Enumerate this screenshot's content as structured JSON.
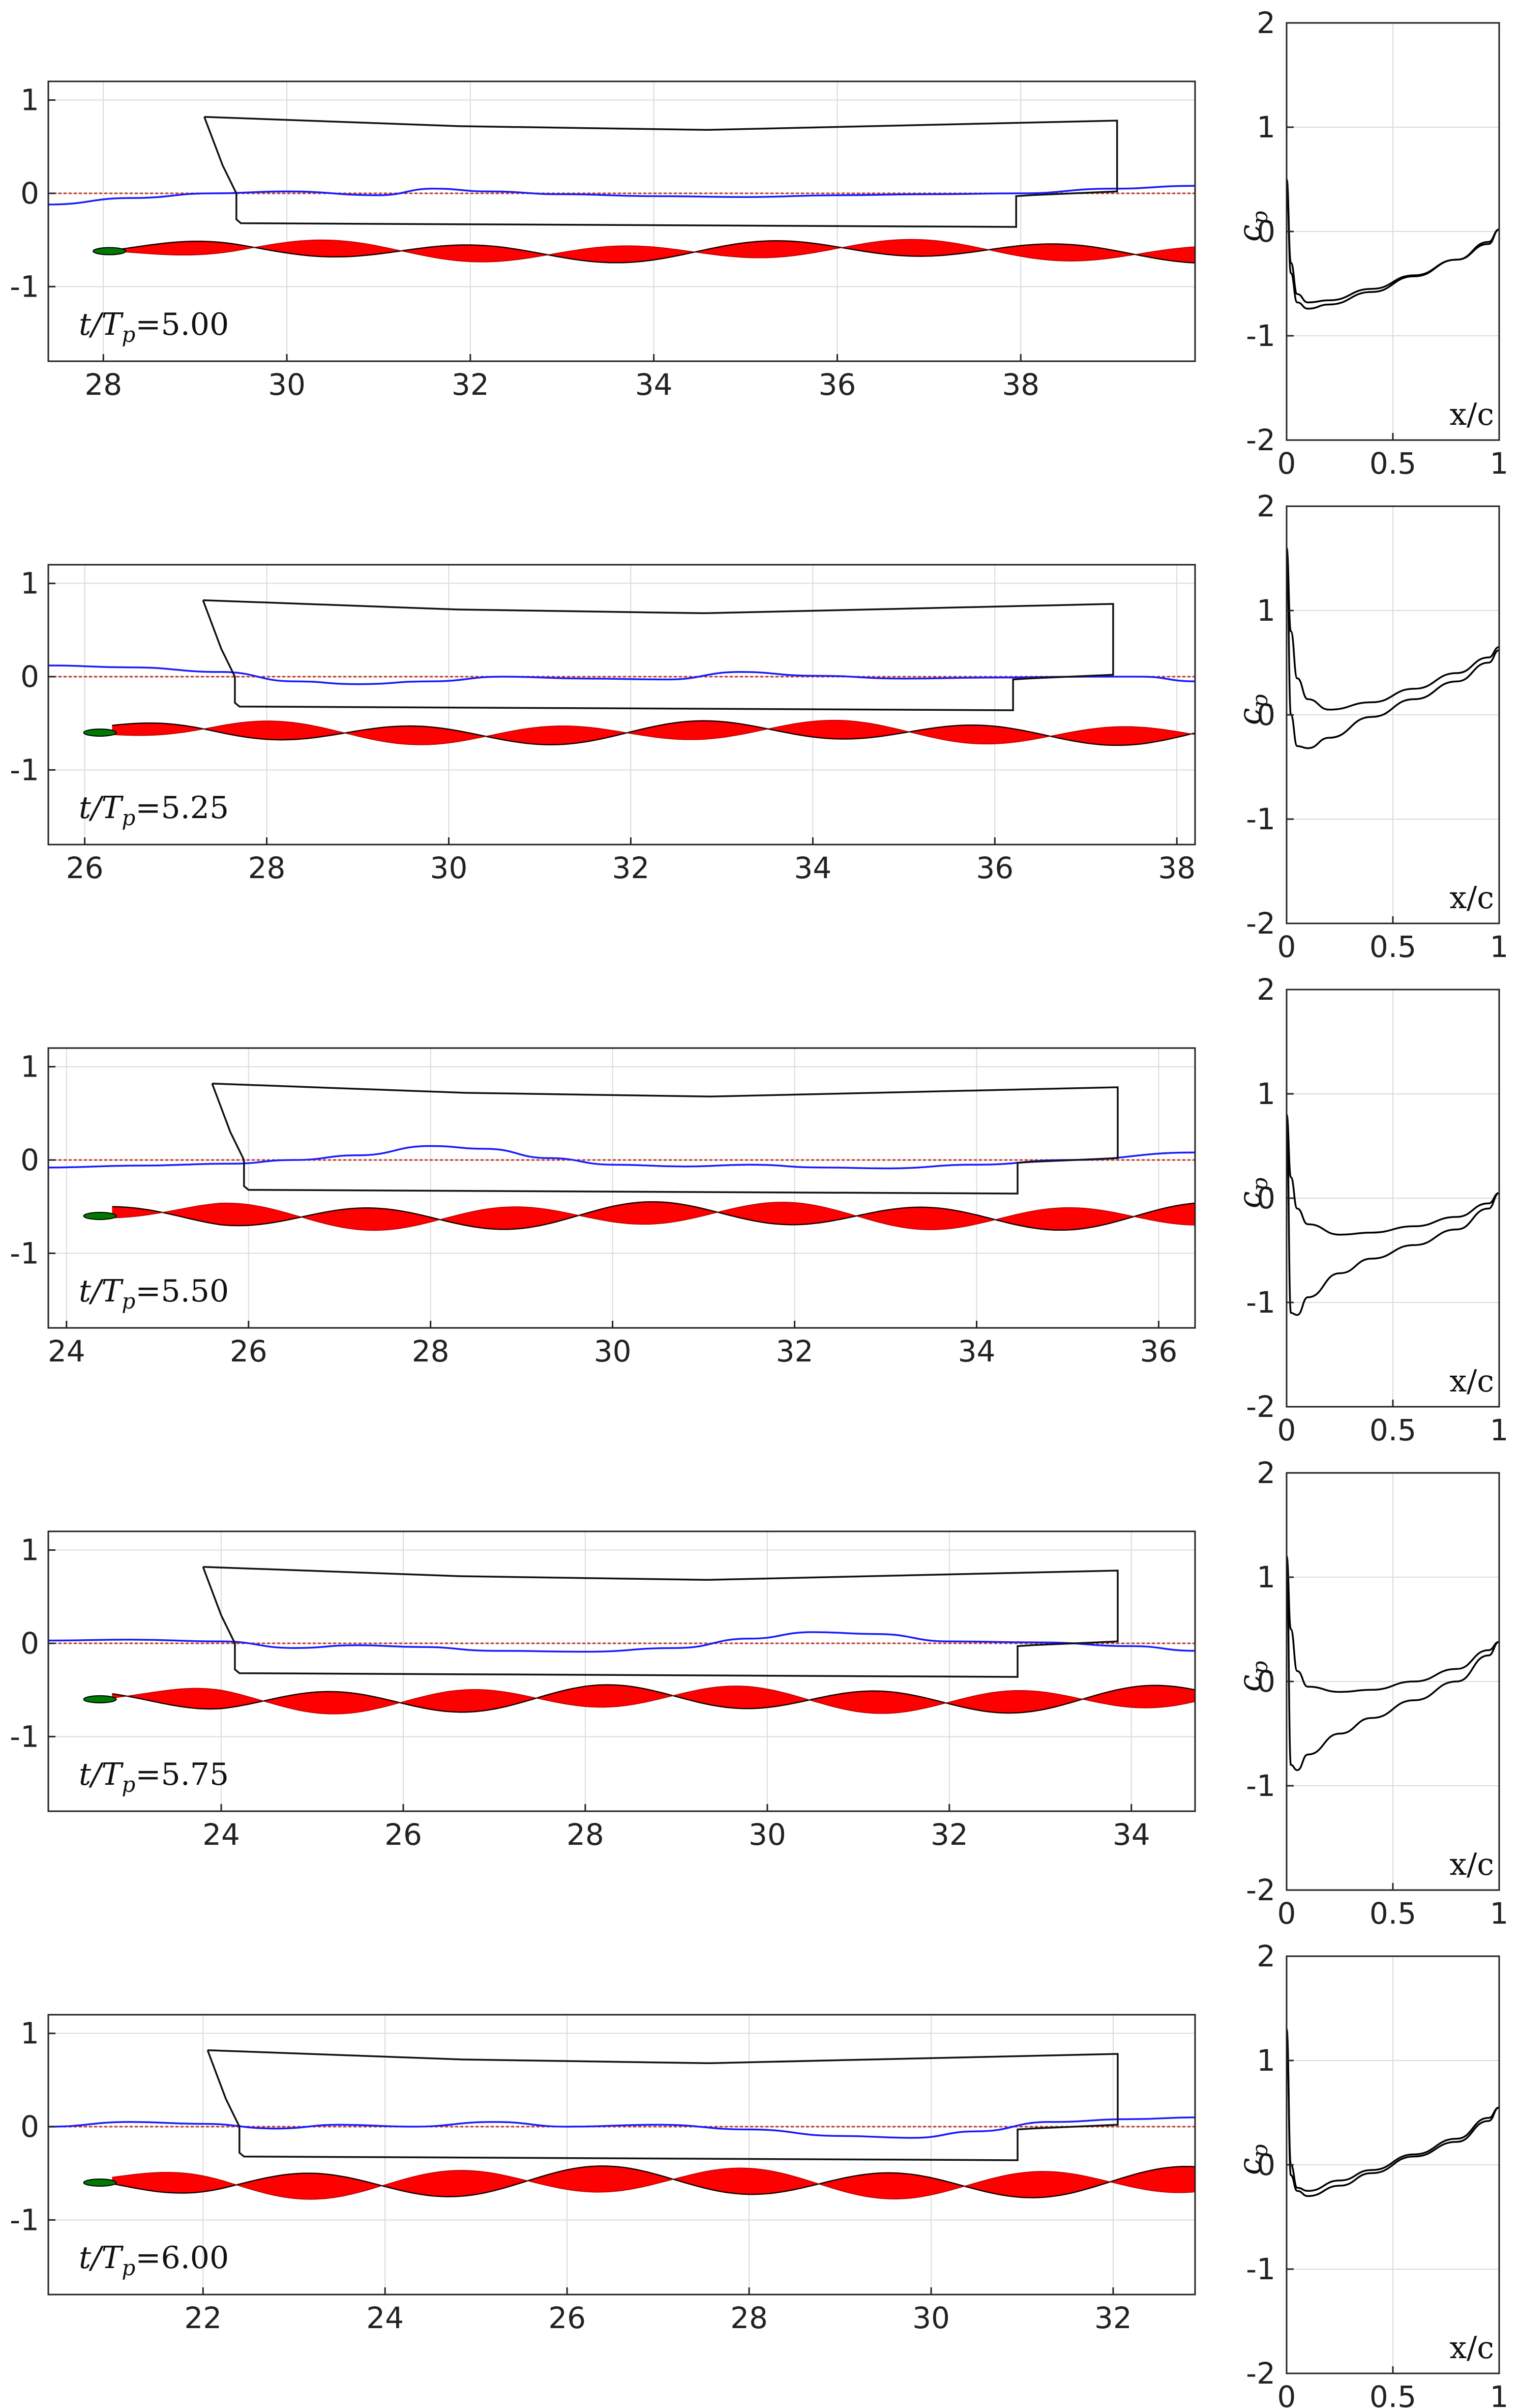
{
  "figure": {
    "description_free": true,
    "colors": {
      "axes": "#222222",
      "grid": "#dcdcdc",
      "hull": "#111111",
      "free_surface": "#1a1aff",
      "still_water": "#c0392b",
      "wake_fill": "#ff0000",
      "wake_edge": "#1a0000",
      "foil": "#007a00",
      "cp_line": "#000000"
    }
  },
  "chart_data": [
    {
      "id": "snapshot-1",
      "type": "line",
      "time_label": {
        "lhs": "t/T",
        "sub": "p",
        "rhs": "=5.00"
      },
      "xlim": [
        27.4,
        39.9
      ],
      "ylim": [
        -1.8,
        1.2
      ],
      "xticks": [
        28,
        30,
        32,
        34,
        36,
        38
      ],
      "yticks": [
        1,
        0,
        -1
      ],
      "hull": {
        "bow_x": 29.1,
        "stern_x": 39.05
      },
      "free_surface": [
        [
          27.4,
          -0.12
        ],
        [
          28.3,
          -0.05
        ],
        [
          29.2,
          0.0
        ],
        [
          30.0,
          0.02
        ],
        [
          31.0,
          -0.02
        ],
        [
          31.6,
          0.05
        ],
        [
          32.2,
          0.02
        ],
        [
          33.0,
          -0.01
        ],
        [
          34.0,
          -0.03
        ],
        [
          35.0,
          -0.04
        ],
        [
          36.0,
          -0.02
        ],
        [
          37.0,
          -0.01
        ],
        [
          38.0,
          0.0
        ],
        [
          39.0,
          0.05
        ],
        [
          39.9,
          0.08
        ]
      ],
      "wake": {
        "x0": 28.2,
        "x1": 39.9,
        "center": -0.62,
        "amp": 0.09,
        "wavelength": 3.2,
        "phase": 0.3
      },
      "foil_x": 27.9,
      "cp": {
        "upper": [
          [
            0.0,
            0.5
          ],
          [
            0.02,
            -0.3
          ],
          [
            0.05,
            -0.6
          ],
          [
            0.1,
            -0.68
          ],
          [
            0.2,
            -0.66
          ],
          [
            0.4,
            -0.55
          ],
          [
            0.6,
            -0.42
          ],
          [
            0.8,
            -0.27
          ],
          [
            0.95,
            -0.1
          ],
          [
            1.0,
            0.02
          ]
        ],
        "lower": [
          [
            0.0,
            0.5
          ],
          [
            0.02,
            -0.4
          ],
          [
            0.05,
            -0.68
          ],
          [
            0.1,
            -0.74
          ],
          [
            0.2,
            -0.7
          ],
          [
            0.4,
            -0.58
          ],
          [
            0.6,
            -0.43
          ],
          [
            0.8,
            -0.27
          ],
          [
            0.95,
            -0.12
          ],
          [
            1.0,
            0.02
          ]
        ]
      },
      "cp_xlabel": "x/c",
      "cp_ylabel": "c",
      "cp_ylabel_sub": "p",
      "cp_xticks": [
        "0",
        "0.5",
        "1"
      ],
      "cp_yticks": [
        "2",
        "1",
        "0",
        "-1",
        "-2"
      ]
    },
    {
      "id": "snapshot-2",
      "type": "line",
      "time_label": {
        "lhs": "t/T",
        "sub": "p",
        "rhs": "=5.25"
      },
      "xlim": [
        25.6,
        38.2
      ],
      "ylim": [
        -1.8,
        1.2
      ],
      "xticks": [
        26,
        28,
        30,
        32,
        34,
        36,
        38
      ],
      "yticks": [
        1,
        0,
        -1
      ],
      "hull": {
        "bow_x": 27.3,
        "stern_x": 37.3
      },
      "free_surface": [
        [
          25.6,
          0.12
        ],
        [
          26.5,
          0.1
        ],
        [
          27.5,
          0.05
        ],
        [
          28.3,
          -0.05
        ],
        [
          29.0,
          -0.08
        ],
        [
          29.8,
          -0.05
        ],
        [
          30.6,
          0.0
        ],
        [
          31.5,
          -0.02
        ],
        [
          32.4,
          -0.03
        ],
        [
          33.2,
          0.05
        ],
        [
          34.0,
          0.01
        ],
        [
          35.0,
          -0.02
        ],
        [
          36.0,
          -0.01
        ],
        [
          37.0,
          0.0
        ],
        [
          37.6,
          0.0
        ],
        [
          38.2,
          -0.05
        ]
      ],
      "wake": {
        "x0": 26.3,
        "x1": 38.2,
        "center": -0.6,
        "amp": 0.1,
        "wavelength": 3.1,
        "phase": 1.1
      },
      "foil_x": 26.0,
      "cp": {
        "upper": [
          [
            0.0,
            1.6
          ],
          [
            0.02,
            0.8
          ],
          [
            0.05,
            0.35
          ],
          [
            0.1,
            0.15
          ],
          [
            0.2,
            0.05
          ],
          [
            0.4,
            0.12
          ],
          [
            0.6,
            0.25
          ],
          [
            0.8,
            0.4
          ],
          [
            0.95,
            0.55
          ],
          [
            1.0,
            0.65
          ]
        ],
        "lower": [
          [
            0.0,
            1.6
          ],
          [
            0.02,
            0.0
          ],
          [
            0.05,
            -0.3
          ],
          [
            0.1,
            -0.32
          ],
          [
            0.2,
            -0.22
          ],
          [
            0.4,
            -0.02
          ],
          [
            0.6,
            0.15
          ],
          [
            0.8,
            0.32
          ],
          [
            0.95,
            0.5
          ],
          [
            1.0,
            0.62
          ]
        ]
      },
      "cp_xlabel": "x/c",
      "cp_ylabel": "c",
      "cp_ylabel_sub": "p",
      "cp_xticks": [
        "0",
        "0.5",
        "1"
      ],
      "cp_yticks": [
        "2",
        "1",
        "0",
        "-1",
        "-2"
      ]
    },
    {
      "id": "snapshot-3",
      "type": "line",
      "time_label": {
        "lhs": "t/T",
        "sub": "p",
        "rhs": "=5.50"
      },
      "xlim": [
        23.8,
        36.4
      ],
      "ylim": [
        -1.8,
        1.2
      ],
      "xticks": [
        24,
        26,
        28,
        30,
        32,
        34,
        36
      ],
      "yticks": [
        1,
        0,
        -1
      ],
      "hull": {
        "bow_x": 25.6,
        "stern_x": 35.55
      },
      "free_surface": [
        [
          23.8,
          -0.08
        ],
        [
          24.8,
          -0.06
        ],
        [
          25.8,
          -0.04
        ],
        [
          26.5,
          0.0
        ],
        [
          27.2,
          0.05
        ],
        [
          28.0,
          0.15
        ],
        [
          28.6,
          0.12
        ],
        [
          29.3,
          0.02
        ],
        [
          30.0,
          -0.05
        ],
        [
          30.8,
          -0.07
        ],
        [
          31.5,
          -0.05
        ],
        [
          32.3,
          -0.08
        ],
        [
          33.0,
          -0.09
        ],
        [
          34.0,
          -0.05
        ],
        [
          35.0,
          0.0
        ],
        [
          36.4,
          0.08
        ]
      ],
      "wake": {
        "x0": 24.5,
        "x1": 36.4,
        "center": -0.6,
        "amp": 0.12,
        "wavelength": 3.05,
        "phase": 2.0
      },
      "foil_x": 24.2,
      "cp": {
        "upper": [
          [
            0.0,
            0.8
          ],
          [
            0.02,
            0.2
          ],
          [
            0.05,
            -0.1
          ],
          [
            0.1,
            -0.25
          ],
          [
            0.25,
            -0.35
          ],
          [
            0.4,
            -0.33
          ],
          [
            0.6,
            -0.27
          ],
          [
            0.8,
            -0.18
          ],
          [
            0.95,
            -0.05
          ],
          [
            1.0,
            0.05
          ]
        ],
        "lower": [
          [
            0.0,
            0.8
          ],
          [
            0.02,
            -1.1
          ],
          [
            0.05,
            -1.12
          ],
          [
            0.1,
            -0.95
          ],
          [
            0.25,
            -0.72
          ],
          [
            0.4,
            -0.58
          ],
          [
            0.6,
            -0.45
          ],
          [
            0.8,
            -0.3
          ],
          [
            0.95,
            -0.1
          ],
          [
            1.0,
            0.05
          ]
        ]
      },
      "cp_xlabel": "x/c",
      "cp_ylabel": "c",
      "cp_ylabel_sub": "p",
      "cp_xticks": [
        "0",
        "0.5",
        "1"
      ],
      "cp_yticks": [
        "2",
        "1",
        "0",
        "-1",
        "-2"
      ]
    },
    {
      "id": "snapshot-4",
      "type": "line",
      "time_label": {
        "lhs": "t/T",
        "sub": "p",
        "rhs": "=5.75"
      },
      "xlim": [
        22.1,
        34.7
      ],
      "ylim": [
        -1.8,
        1.2
      ],
      "xticks": [
        24,
        26,
        28,
        30,
        32,
        34
      ],
      "yticks": [
        1,
        0,
        -1
      ],
      "hull": {
        "bow_x": 23.8,
        "stern_x": 33.85
      },
      "free_surface": [
        [
          22.1,
          0.03
        ],
        [
          23.0,
          0.04
        ],
        [
          24.0,
          0.02
        ],
        [
          24.8,
          -0.05
        ],
        [
          25.5,
          -0.02
        ],
        [
          26.2,
          -0.04
        ],
        [
          27.0,
          -0.08
        ],
        [
          28.0,
          -0.09
        ],
        [
          29.0,
          -0.05
        ],
        [
          29.8,
          0.05
        ],
        [
          30.5,
          0.12
        ],
        [
          31.2,
          0.1
        ],
        [
          32.0,
          0.02
        ],
        [
          33.0,
          0.01
        ],
        [
          34.0,
          -0.03
        ],
        [
          34.7,
          -0.08
        ]
      ],
      "wake": {
        "x0": 22.8,
        "x1": 34.7,
        "center": -0.6,
        "amp": 0.12,
        "wavelength": 3.0,
        "phase": 2.8
      },
      "foil_x": 22.5,
      "cp": {
        "upper": [
          [
            0.0,
            1.2
          ],
          [
            0.02,
            0.5
          ],
          [
            0.05,
            0.1
          ],
          [
            0.1,
            -0.05
          ],
          [
            0.25,
            -0.1
          ],
          [
            0.4,
            -0.08
          ],
          [
            0.6,
            0.0
          ],
          [
            0.8,
            0.12
          ],
          [
            0.95,
            0.3
          ],
          [
            1.0,
            0.38
          ]
        ],
        "lower": [
          [
            0.0,
            1.2
          ],
          [
            0.02,
            -0.8
          ],
          [
            0.05,
            -0.85
          ],
          [
            0.1,
            -0.7
          ],
          [
            0.25,
            -0.5
          ],
          [
            0.4,
            -0.35
          ],
          [
            0.6,
            -0.18
          ],
          [
            0.8,
            0.0
          ],
          [
            0.95,
            0.25
          ],
          [
            1.0,
            0.38
          ]
        ]
      },
      "cp_xlabel": "x/c",
      "cp_ylabel": "c",
      "cp_ylabel_sub": "p",
      "cp_xticks": [
        "0",
        "0.5",
        "1"
      ],
      "cp_yticks": [
        "2",
        "1",
        "0",
        "-1",
        "-2"
      ]
    },
    {
      "id": "snapshot-5",
      "type": "line",
      "time_label": {
        "lhs": "t/T",
        "sub": "p",
        "rhs": "=6.00"
      },
      "xlim": [
        20.3,
        32.9
      ],
      "ylim": [
        -1.8,
        1.2
      ],
      "xticks": [
        22,
        24,
        26,
        28,
        30,
        32
      ],
      "yticks": [
        1,
        0,
        -1
      ],
      "hull": {
        "bow_x": 22.05,
        "stern_x": 32.05
      },
      "free_surface": [
        [
          20.3,
          0.0
        ],
        [
          21.2,
          0.05
        ],
        [
          22.0,
          0.03
        ],
        [
          22.8,
          -0.02
        ],
        [
          23.5,
          0.02
        ],
        [
          24.3,
          0.0
        ],
        [
          25.2,
          0.05
        ],
        [
          26.0,
          0.0
        ],
        [
          27.0,
          0.02
        ],
        [
          28.0,
          -0.03
        ],
        [
          29.0,
          -0.1
        ],
        [
          29.8,
          -0.12
        ],
        [
          30.5,
          -0.05
        ],
        [
          31.3,
          0.05
        ],
        [
          32.2,
          0.08
        ],
        [
          32.9,
          0.1
        ]
      ],
      "wake": {
        "x0": 21.0,
        "x1": 32.9,
        "center": -0.6,
        "amp": 0.14,
        "wavelength": 3.2,
        "phase": 3.6
      },
      "foil_x": 20.7,
      "cp": {
        "upper": [
          [
            0.0,
            1.3
          ],
          [
            0.02,
            0.0
          ],
          [
            0.05,
            -0.22
          ],
          [
            0.1,
            -0.25
          ],
          [
            0.25,
            -0.15
          ],
          [
            0.4,
            -0.05
          ],
          [
            0.6,
            0.1
          ],
          [
            0.8,
            0.25
          ],
          [
            0.95,
            0.45
          ],
          [
            1.0,
            0.55
          ]
        ],
        "lower": [
          [
            0.0,
            1.3
          ],
          [
            0.02,
            -0.1
          ],
          [
            0.05,
            -0.25
          ],
          [
            0.1,
            -0.3
          ],
          [
            0.25,
            -0.2
          ],
          [
            0.4,
            -0.08
          ],
          [
            0.6,
            0.08
          ],
          [
            0.8,
            0.22
          ],
          [
            0.95,
            0.42
          ],
          [
            1.0,
            0.55
          ]
        ]
      },
      "cp_xlabel": "x/c",
      "cp_ylabel": "c",
      "cp_ylabel_sub": "p",
      "cp_xticks": [
        "0",
        "0.5",
        "1"
      ],
      "cp_yticks": [
        "2",
        "1",
        "0",
        "-1",
        "-2"
      ]
    }
  ]
}
